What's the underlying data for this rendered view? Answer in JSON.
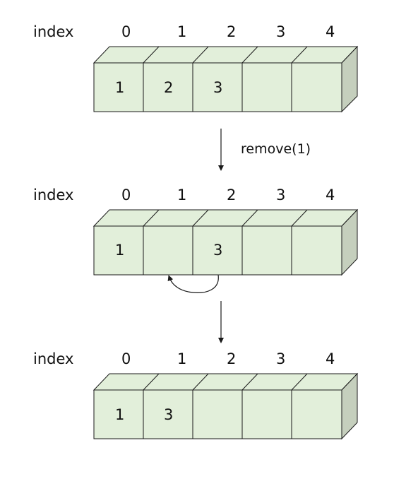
{
  "index_label": "index",
  "indices": [
    "0",
    "1",
    "2",
    "3",
    "4"
  ],
  "arrays": [
    {
      "cells": [
        "1",
        "2",
        "3",
        "",
        ""
      ]
    },
    {
      "cells": [
        "1",
        "",
        "3",
        "",
        ""
      ]
    },
    {
      "cells": [
        "1",
        "3",
        "",
        "",
        ""
      ]
    }
  ],
  "operation_label": "remove(1)",
  "colors": {
    "front": "#e2efda",
    "top": "#e2efda",
    "side": "#c5cfbd",
    "stroke": "#1a1a1a"
  }
}
